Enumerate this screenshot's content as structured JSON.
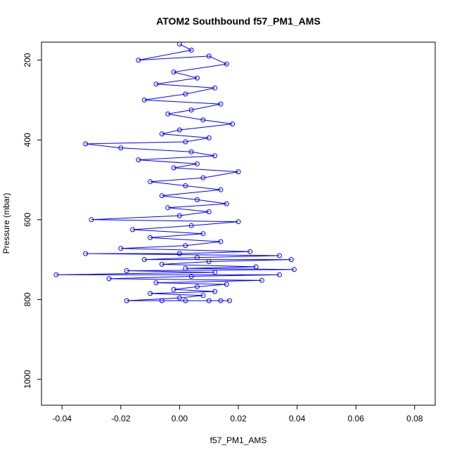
{
  "chart_data": {
    "type": "scatter",
    "title": "ATOM2 Southbound f57_PM1_AMS",
    "xlabel": "f57_PM1_AMS",
    "ylabel": "Pressure (mbar)",
    "xlim": [
      -0.047,
      0.087
    ],
    "ylim": [
      1065,
      155
    ],
    "y_reversed": true,
    "grid": false,
    "x_ticks": [
      "-0.04",
      "-0.02",
      "0.00",
      "0.02",
      "0.04",
      "0.06",
      "0.08"
    ],
    "y_ticks": [
      "200",
      "400",
      "600",
      "800",
      "1000"
    ],
    "series": [
      {
        "color": "#0000ff",
        "marker": "open-circle",
        "connected": true,
        "points": [
          [
            0.0,
            160
          ],
          [
            0.004,
            175
          ],
          [
            -0.014,
            200
          ],
          [
            0.01,
            190
          ],
          [
            0.016,
            210
          ],
          [
            -0.002,
            230
          ],
          [
            0.006,
            245
          ],
          [
            -0.008,
            260
          ],
          [
            0.012,
            270
          ],
          [
            0.002,
            285
          ],
          [
            -0.012,
            300
          ],
          [
            0.014,
            310
          ],
          [
            0.004,
            325
          ],
          [
            -0.004,
            335
          ],
          [
            0.008,
            350
          ],
          [
            0.018,
            360
          ],
          [
            0.0,
            375
          ],
          [
            -0.006,
            385
          ],
          [
            0.01,
            395
          ],
          [
            0.002,
            405
          ],
          [
            -0.032,
            410
          ],
          [
            -0.02,
            420
          ],
          [
            0.004,
            430
          ],
          [
            0.012,
            440
          ],
          [
            -0.014,
            450
          ],
          [
            0.006,
            460
          ],
          [
            -0.002,
            470
          ],
          [
            0.02,
            480
          ],
          [
            0.008,
            495
          ],
          [
            -0.01,
            505
          ],
          [
            0.002,
            515
          ],
          [
            0.014,
            525
          ],
          [
            -0.006,
            540
          ],
          [
            0.006,
            550
          ],
          [
            0.016,
            560
          ],
          [
            -0.004,
            570
          ],
          [
            0.01,
            580
          ],
          [
            0.0,
            590
          ],
          [
            -0.03,
            600
          ],
          [
            0.02,
            605
          ],
          [
            0.004,
            615
          ],
          [
            -0.016,
            625
          ],
          [
            0.008,
            635
          ],
          [
            -0.01,
            645
          ],
          [
            0.014,
            655
          ],
          [
            0.002,
            665
          ],
          [
            -0.02,
            672
          ],
          [
            0.024,
            680
          ],
          [
            0.0,
            685
          ],
          [
            -0.032,
            685
          ],
          [
            0.034,
            690
          ],
          [
            0.006,
            695
          ],
          [
            -0.012,
            700
          ],
          [
            0.038,
            700
          ],
          [
            0.01,
            705
          ],
          [
            -0.006,
            712
          ],
          [
            0.026,
            718
          ],
          [
            0.002,
            722
          ],
          [
            0.039,
            725
          ],
          [
            -0.018,
            728
          ],
          [
            0.012,
            732
          ],
          [
            -0.042,
            738
          ],
          [
            0.034,
            738
          ],
          [
            0.004,
            742
          ],
          [
            -0.024,
            748
          ],
          [
            0.028,
            752
          ],
          [
            -0.008,
            758
          ],
          [
            0.016,
            762
          ],
          [
            0.006,
            768
          ],
          [
            -0.002,
            775
          ],
          [
            0.012,
            780
          ],
          [
            -0.01,
            785
          ],
          [
            0.008,
            790
          ],
          [
            0.0,
            796
          ],
          [
            -0.018,
            803
          ],
          [
            0.014,
            803
          ],
          [
            0.002,
            803
          ],
          [
            -0.006,
            803
          ],
          [
            0.01,
            803
          ],
          [
            0.017,
            803
          ]
        ]
      }
    ]
  }
}
